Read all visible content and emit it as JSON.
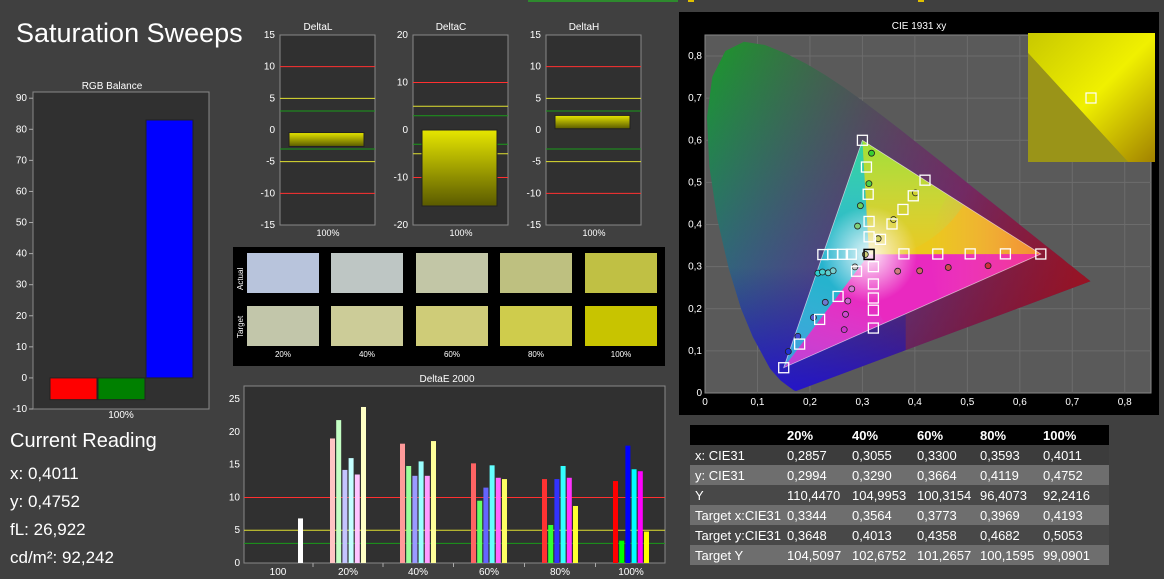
{
  "title": "Saturation Sweeps",
  "rgb_balance": {
    "title": "RGB Balance",
    "xlabel": "100%",
    "y_ticks": [
      "90",
      "80",
      "70",
      "60",
      "50",
      "40",
      "30",
      "20",
      "10",
      "0",
      "-10"
    ]
  },
  "delta_l": {
    "title": "DeltaL",
    "xlabel": "100%",
    "y_ticks": [
      "15",
      "10",
      "5",
      "0",
      "-5",
      "-10",
      "-15"
    ]
  },
  "delta_c": {
    "title": "DeltaC",
    "xlabel": "100%",
    "y_ticks": [
      "20",
      "10",
      "0",
      "-10",
      "-20"
    ]
  },
  "delta_h": {
    "title": "DeltaH",
    "xlabel": "100%",
    "y_ticks": [
      "15",
      "10",
      "5",
      "0",
      "-5",
      "-10",
      "-15"
    ]
  },
  "swatches": {
    "actual_label": "Actual",
    "target_label": "Target",
    "columns": [
      "20%",
      "40%",
      "60%",
      "80%",
      "100%"
    ],
    "actual_colors": [
      "#b8c4dc",
      "#bec6c4",
      "#c2c6a6",
      "#bec080",
      "#c0c044"
    ],
    "target_colors": [
      "#c2c6aa",
      "#cccc98",
      "#cfcc78",
      "#cfcc4c",
      "#c8c400"
    ]
  },
  "delta_e": {
    "title": "DeltaE 2000",
    "y_ticks": [
      "25",
      "20",
      "15",
      "10",
      "5",
      "0"
    ],
    "x_labels": [
      "100",
      "20%",
      "40%",
      "60%",
      "80%",
      "100%"
    ]
  },
  "cie": {
    "title": "CIE 1931 xy",
    "x_ticks": [
      "0",
      "0,1",
      "0,2",
      "0,3",
      "0,4",
      "0,5",
      "0,6",
      "0,7",
      "0,8"
    ],
    "y_ticks": [
      "0,8",
      "0,7",
      "0,6",
      "0,5",
      "0,4",
      "0,3",
      "0,2",
      "0,1",
      "0"
    ]
  },
  "reading": {
    "title": "Current Reading",
    "x": "x: 0,4011",
    "y": "y: 0,4752",
    "fl": "fL: 26,922",
    "cd": "cd/m²: 92,242"
  },
  "table": {
    "headers": [
      "",
      "20%",
      "40%",
      "60%",
      "80%",
      "100%"
    ],
    "rows": [
      {
        "label": "x: CIE31",
        "values": [
          "0,2857",
          "0,3055",
          "0,3300",
          "0,3593",
          "0,4011"
        ]
      },
      {
        "label": "y: CIE31",
        "values": [
          "0,2994",
          "0,3290",
          "0,3664",
          "0,4119",
          "0,4752"
        ]
      },
      {
        "label": "Y",
        "values": [
          "110,4470",
          "104,9953",
          "100,3154",
          "96,4073",
          "92,2416"
        ]
      },
      {
        "label": "Target x:CIE31",
        "values": [
          "0,3344",
          "0,3564",
          "0,3773",
          "0,3969",
          "0,4193"
        ]
      },
      {
        "label": "Target y:CIE31",
        "values": [
          "0,3648",
          "0,4013",
          "0,4358",
          "0,4682",
          "0,5053"
        ]
      },
      {
        "label": "Target Y",
        "values": [
          "104,5097",
          "102,6752",
          "101,2657",
          "100,1595",
          "99,0901"
        ]
      }
    ]
  },
  "chart_data": [
    {
      "type": "bar",
      "title": "RGB Balance",
      "categories": [
        "100%"
      ],
      "series": [
        {
          "color": "#ff0000",
          "values": [
            -7
          ]
        },
        {
          "color": "#008000",
          "values": [
            -7
          ]
        },
        {
          "color": "#0000ff",
          "values": [
            83
          ]
        }
      ],
      "ylim": [
        -10,
        92
      ]
    },
    {
      "type": "bar",
      "title": "DeltaL",
      "categories": [
        "100%"
      ],
      "values": [
        [
          -2.6,
          -0.4
        ]
      ],
      "ylim": [
        -15,
        15
      ]
    },
    {
      "type": "bar",
      "title": "DeltaC",
      "categories": [
        "100%"
      ],
      "values": [
        [
          -16,
          0
        ]
      ],
      "ylim": [
        -20,
        20
      ]
    },
    {
      "type": "bar",
      "title": "DeltaH",
      "categories": [
        "100%"
      ],
      "values": [
        [
          0.2,
          2.3
        ]
      ],
      "ylim": [
        -15,
        15
      ]
    },
    {
      "type": "bar",
      "title": "DeltaE 2000",
      "groups": [
        {
          "label": "100",
          "bars": [
            {
              "color": "#ffffff",
              "v": 6.8
            }
          ]
        },
        {
          "label": "20%",
          "bars": [
            {
              "color": "#ffc4c4",
              "v": 19
            },
            {
              "color": "#c4ffc4",
              "v": 21.8
            },
            {
              "color": "#c4c4ff",
              "v": 14.2
            },
            {
              "color": "#c4ffff",
              "v": 16
            },
            {
              "color": "#ffc4ff",
              "v": 13.5
            },
            {
              "color": "#ffffc4",
              "v": 23.8
            }
          ]
        },
        {
          "label": "40%",
          "bars": [
            {
              "color": "#ff9a9a",
              "v": 18.2
            },
            {
              "color": "#9aff9a",
              "v": 14.8
            },
            {
              "color": "#9a9aff",
              "v": 13.3
            },
            {
              "color": "#9affff",
              "v": 15.5
            },
            {
              "color": "#ff9aff",
              "v": 13.3
            },
            {
              "color": "#ffff9a",
              "v": 18.6
            }
          ]
        },
        {
          "label": "60%",
          "bars": [
            {
              "color": "#ff6464",
              "v": 15.2
            },
            {
              "color": "#64ff64",
              "v": 9.5
            },
            {
              "color": "#6464ff",
              "v": 11.5
            },
            {
              "color": "#64ffff",
              "v": 14.9
            },
            {
              "color": "#ff64ff",
              "v": 13
            },
            {
              "color": "#ffff64",
              "v": 12.8
            }
          ]
        },
        {
          "label": "80%",
          "bars": [
            {
              "color": "#ff3232",
              "v": 12.8
            },
            {
              "color": "#32ff32",
              "v": 5.8
            },
            {
              "color": "#3232ff",
              "v": 12.8
            },
            {
              "color": "#32ffff",
              "v": 14.8
            },
            {
              "color": "#ff32ff",
              "v": 13
            },
            {
              "color": "#ffff32",
              "v": 8.7
            }
          ]
        },
        {
          "label": "100%",
          "bars": [
            {
              "color": "#ff0000",
              "v": 12.5
            },
            {
              "color": "#00ff00",
              "v": 3.4
            },
            {
              "color": "#0000ff",
              "v": 17.9
            },
            {
              "color": "#00ffff",
              "v": 14.3
            },
            {
              "color": "#ff00ff",
              "v": 14
            },
            {
              "color": "#ffff00",
              "v": 4.8
            }
          ]
        }
      ],
      "ylim": [
        0,
        27
      ]
    },
    {
      "type": "scatter",
      "title": "CIE 1931 xy",
      "xlim": [
        0,
        0.85
      ],
      "ylim": [
        0,
        0.85
      ],
      "targets": [
        [
          0.64,
          0.33
        ],
        [
          0.5725,
          0.3303
        ],
        [
          0.5054,
          0.3303
        ],
        [
          0.4436,
          0.33
        ],
        [
          0.3791,
          0.3303
        ],
        [
          0.3,
          0.6
        ],
        [
          0.3077,
          0.5365
        ],
        [
          0.311,
          0.4719
        ],
        [
          0.3127,
          0.4073
        ],
        [
          0.3127,
          0.3709
        ],
        [
          0.15,
          0.06
        ],
        [
          0.1804,
          0.1161
        ],
        [
          0.2185,
          0.1747
        ],
        [
          0.2536,
          0.2293
        ],
        [
          0.2888,
          0.2891
        ],
        [
          0.2246,
          0.3287
        ],
        [
          0.2437,
          0.3291
        ],
        [
          0.262,
          0.3293
        ],
        [
          0.2788,
          0.3295
        ],
        [
          0.3127,
          0.329
        ],
        [
          0.3209,
          0.1542
        ],
        [
          0.3209,
          0.1966
        ],
        [
          0.3209,
          0.2255
        ],
        [
          0.3209,
          0.2588
        ],
        [
          0.3209,
          0.3
        ],
        [
          0.4193,
          0.5053
        ],
        [
          0.3969,
          0.4682
        ],
        [
          0.3773,
          0.4358
        ],
        [
          0.3564,
          0.4013
        ],
        [
          0.3344,
          0.3648
        ]
      ],
      "measured": [
        {
          "c": "#d0303c",
          "x": 0.5395,
          "y": 0.3022
        },
        {
          "c": "#d04a50",
          "x": 0.4636,
          "y": 0.2981
        },
        {
          "c": "#d26468",
          "x": 0.4091,
          "y": 0.2901
        },
        {
          "c": "#d07e80",
          "x": 0.3672,
          "y": 0.2892
        },
        {
          "c": "#38d030",
          "x": 0.3174,
          "y": 0.5694
        },
        {
          "c": "#50d048",
          "x": 0.3124,
          "y": 0.4971
        },
        {
          "c": "#68d060",
          "x": 0.2961,
          "y": 0.4447
        },
        {
          "c": "#80d078",
          "x": 0.2907,
          "y": 0.3964
        },
        {
          "c": "#2030d0",
          "x": 0.1588,
          "y": 0.0985
        },
        {
          "c": "#4048d0",
          "x": 0.1769,
          "y": 0.1347
        },
        {
          "c": "#5860d0",
          "x": 0.2066,
          "y": 0.1792
        },
        {
          "c": "#7078d0",
          "x": 0.2292,
          "y": 0.2153
        },
        {
          "c": "#30d0d0",
          "x": 0.2152,
          "y": 0.2847
        },
        {
          "c": "#48d0d0",
          "x": 0.2239,
          "y": 0.2873
        },
        {
          "c": "#60d0d0",
          "x": 0.2348,
          "y": 0.2854
        },
        {
          "c": "#78d0d0",
          "x": 0.2442,
          "y": 0.2902
        },
        {
          "c": "#d030d0",
          "x": 0.2653,
          "y": 0.1505
        },
        {
          "c": "#d048d0",
          "x": 0.2678,
          "y": 0.1868
        },
        {
          "c": "#d060d0",
          "x": 0.2722,
          "y": 0.2184
        },
        {
          "c": "#d078d0",
          "x": 0.2797,
          "y": 0.2472
        },
        {
          "c": "#d0d030",
          "x": 0.4011,
          "y": 0.4752
        },
        {
          "c": "#d0d048",
          "x": 0.3593,
          "y": 0.4119
        },
        {
          "c": "#d0d060",
          "x": 0.33,
          "y": 0.3664
        },
        {
          "c": "#d0d078",
          "x": 0.3055,
          "y": 0.329
        },
        {
          "c": "#c8c8c8",
          "x": 0.2857,
          "y": 0.2994
        }
      ],
      "gamut": [
        [
          0.64,
          0.33
        ],
        [
          0.3,
          0.6
        ],
        [
          0.15,
          0.06
        ]
      ]
    }
  ]
}
